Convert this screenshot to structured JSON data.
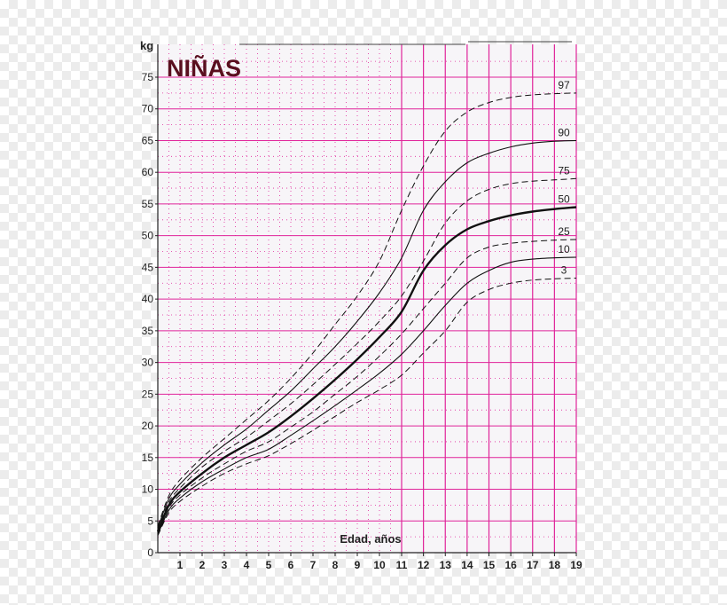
{
  "chart_data": {
    "type": "line",
    "title": "NIÑAS",
    "ylabel": "kg",
    "xlabel": "Edad, años",
    "xlim": [
      0,
      19
    ],
    "ylim": [
      0,
      80
    ],
    "y_ticks": [
      0,
      5,
      10,
      15,
      20,
      25,
      30,
      35,
      40,
      45,
      50,
      55,
      60,
      65,
      70,
      75
    ],
    "x_ticks": [
      1,
      2,
      3,
      4,
      5,
      6,
      7,
      8,
      9,
      10,
      11,
      12,
      13,
      14,
      15,
      16,
      17,
      18,
      19
    ],
    "x": [
      0,
      0.5,
      1,
      2,
      3,
      4,
      5,
      6,
      7,
      8,
      9,
      10,
      11,
      12,
      13,
      14,
      15,
      16,
      17,
      18,
      19
    ],
    "series": [
      {
        "name": "97",
        "style": "dashed",
        "values": [
          4.2,
          9,
          11.5,
          15,
          18,
          21,
          24,
          27.5,
          31.5,
          36,
          40.5,
          46,
          54,
          61,
          66.5,
          69.5,
          71,
          71.8,
          72.2,
          72.4,
          72.5
        ]
      },
      {
        "name": "90",
        "style": "solid",
        "values": [
          3.9,
          8.5,
          10.8,
          14.2,
          17,
          19.5,
          22.5,
          25.5,
          29,
          32.5,
          36.5,
          41,
          46.5,
          54,
          58.5,
          61.5,
          63,
          64,
          64.6,
          64.9,
          65
        ]
      },
      {
        "name": "75",
        "style": "dashed",
        "values": [
          3.6,
          8,
          10.2,
          13.5,
          16,
          18.2,
          20.8,
          23.5,
          26.5,
          29.7,
          33,
          36.5,
          40.5,
          46,
          52,
          55.5,
          57.3,
          58.2,
          58.6,
          58.8,
          59
        ]
      },
      {
        "name": "50",
        "style": "bold",
        "values": [
          3.3,
          7.5,
          9.6,
          12.5,
          15,
          17,
          19,
          21.5,
          24.3,
          27.3,
          30.5,
          34,
          38,
          44.5,
          48.5,
          51,
          52.3,
          53.2,
          53.8,
          54.2,
          54.5
        ]
      },
      {
        "name": "25",
        "style": "dashed",
        "values": [
          3.1,
          7.1,
          9.1,
          11.8,
          14,
          16,
          17.5,
          19.8,
          22.2,
          25,
          27.8,
          31,
          34.5,
          38.5,
          42.5,
          46.5,
          48.2,
          48.8,
          49.1,
          49.3,
          49.4
        ]
      },
      {
        "name": "10",
        "style": "solid",
        "values": [
          2.9,
          6.7,
          8.6,
          11.2,
          13.2,
          15,
          16.3,
          18.5,
          20.8,
          23.2,
          25.7,
          28.3,
          31.3,
          35,
          39,
          42.5,
          44.5,
          45.8,
          46.3,
          46.5,
          46.6
        ]
      },
      {
        "name": "3",
        "style": "dashed",
        "values": [
          2.7,
          6.3,
          8.1,
          10.5,
          12.5,
          14,
          15.3,
          17.2,
          19.3,
          21.5,
          23.7,
          25.7,
          28,
          31.5,
          35,
          39.5,
          41.5,
          42.5,
          43,
          43.2,
          43.3
        ]
      }
    ]
  }
}
